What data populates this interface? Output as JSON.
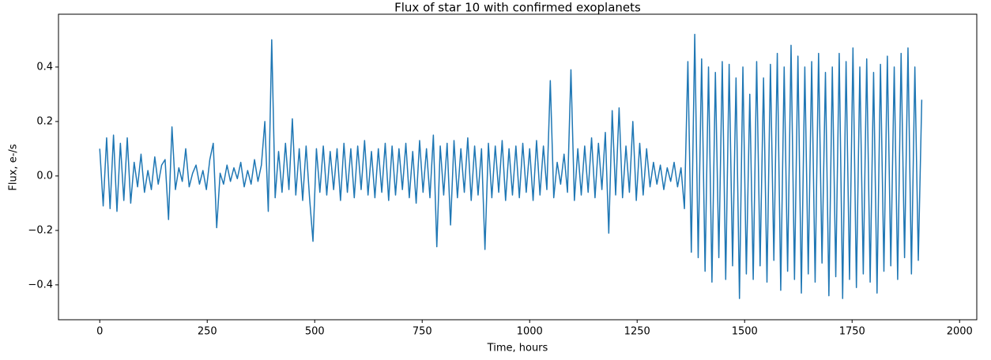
{
  "chart_data": {
    "type": "line",
    "title": "Flux of star 10 with confirmed exoplanets",
    "xlabel": "Time, hours",
    "ylabel": "Flux, e-/s",
    "xlim": [
      -96,
      2040
    ],
    "ylim": [
      -0.528,
      0.594
    ],
    "xticks": [
      0,
      250,
      500,
      750,
      1000,
      1250,
      1500,
      1750,
      2000
    ],
    "yticks": [
      {
        "value": -0.4,
        "label": "−0.4"
      },
      {
        "value": -0.2,
        "label": "−0.2"
      },
      {
        "value": 0,
        "label": "0.0"
      },
      0.2,
      0.4
    ],
    "series": [
      {
        "color": "#1f77b4",
        "x": [
          0,
          8,
          16,
          24,
          32,
          40,
          48,
          56,
          64,
          72,
          80,
          88,
          96,
          104,
          112,
          120,
          128,
          136,
          144,
          152,
          160,
          168,
          176,
          184,
          192,
          200,
          208,
          216,
          224,
          232,
          240,
          248,
          256,
          264,
          272,
          280,
          288,
          296,
          304,
          312,
          320,
          328,
          336,
          344,
          352,
          360,
          368,
          376,
          384,
          392,
          400,
          408,
          416,
          424,
          432,
          440,
          448,
          456,
          464,
          472,
          480,
          488,
          496,
          504,
          512,
          520,
          528,
          536,
          544,
          552,
          560,
          568,
          576,
          584,
          592,
          600,
          608,
          616,
          624,
          632,
          640,
          648,
          656,
          664,
          672,
          680,
          688,
          696,
          704,
          712,
          720,
          728,
          736,
          744,
          752,
          760,
          768,
          776,
          784,
          792,
          800,
          808,
          816,
          824,
          832,
          840,
          848,
          856,
          864,
          872,
          880,
          888,
          896,
          904,
          912,
          920,
          928,
          936,
          944,
          952,
          960,
          968,
          976,
          984,
          992,
          1000,
          1008,
          1016,
          1024,
          1032,
          1040,
          1048,
          1056,
          1064,
          1072,
          1080,
          1088,
          1096,
          1104,
          1112,
          1120,
          1128,
          1136,
          1144,
          1152,
          1160,
          1168,
          1176,
          1184,
          1192,
          1200,
          1208,
          1216,
          1224,
          1232,
          1240,
          1248,
          1256,
          1264,
          1272,
          1280,
          1288,
          1296,
          1304,
          1312,
          1320,
          1328,
          1336,
          1344,
          1352,
          1360,
          1368,
          1376,
          1384,
          1392,
          1400,
          1408,
          1416,
          1424,
          1432,
          1440,
          1448,
          1456,
          1464,
          1472,
          1480,
          1488,
          1496,
          1504,
          1512,
          1520,
          1528,
          1536,
          1544,
          1552,
          1560,
          1568,
          1576,
          1584,
          1592,
          1600,
          1608,
          1616,
          1624,
          1632,
          1640,
          1648,
          1656,
          1664,
          1672,
          1680,
          1688,
          1696,
          1704,
          1712,
          1720,
          1728,
          1736,
          1744,
          1752,
          1760,
          1768,
          1776,
          1784,
          1792,
          1800,
          1808,
          1816,
          1824,
          1832,
          1840,
          1848,
          1856,
          1864,
          1872,
          1880,
          1888,
          1896,
          1904,
          1912
        ],
        "values": [
          0.1,
          -0.11,
          0.14,
          -0.12,
          0.15,
          -0.13,
          0.12,
          -0.09,
          0.14,
          -0.1,
          0.05,
          -0.04,
          0.08,
          -0.06,
          0.02,
          -0.05,
          0.07,
          -0.03,
          0.04,
          0.06,
          -0.16,
          0.18,
          -0.05,
          0.03,
          -0.02,
          0.1,
          -0.04,
          0.01,
          0.04,
          -0.03,
          0.02,
          -0.05,
          0.06,
          0.12,
          -0.19,
          0.01,
          -0.03,
          0.04,
          -0.02,
          0.03,
          -0.01,
          0.05,
          -0.04,
          0.02,
          -0.03,
          0.06,
          -0.02,
          0.04,
          0.2,
          -0.13,
          0.5,
          -0.08,
          0.09,
          -0.06,
          0.12,
          -0.05,
          0.21,
          -0.07,
          0.1,
          -0.09,
          0.11,
          -0.08,
          -0.24,
          0.1,
          -0.06,
          0.11,
          -0.07,
          0.09,
          -0.05,
          0.1,
          -0.09,
          0.12,
          -0.06,
          0.1,
          -0.08,
          0.11,
          -0.05,
          0.13,
          -0.07,
          0.09,
          -0.08,
          0.1,
          -0.06,
          0.12,
          -0.09,
          0.11,
          -0.07,
          0.1,
          -0.05,
          0.12,
          -0.08,
          0.09,
          -0.1,
          0.13,
          -0.06,
          0.1,
          -0.08,
          0.15,
          -0.26,
          0.11,
          -0.07,
          0.12,
          -0.18,
          0.13,
          -0.08,
          0.1,
          -0.06,
          0.14,
          -0.09,
          0.11,
          -0.07,
          0.1,
          -0.27,
          0.12,
          -0.08,
          0.11,
          -0.06,
          0.13,
          -0.09,
          0.1,
          -0.07,
          0.11,
          -0.08,
          0.12,
          -0.06,
          0.1,
          -0.09,
          0.13,
          -0.07,
          0.11,
          -0.05,
          0.35,
          -0.08,
          0.05,
          -0.03,
          0.08,
          -0.06,
          0.39,
          -0.09,
          0.1,
          -0.07,
          0.11,
          -0.06,
          0.14,
          -0.08,
          0.12,
          -0.05,
          0.16,
          -0.21,
          0.24,
          -0.07,
          0.25,
          -0.08,
          0.11,
          -0.06,
          0.2,
          -0.09,
          0.12,
          -0.07,
          0.1,
          -0.04,
          0.05,
          -0.03,
          0.04,
          -0.05,
          0.03,
          -0.02,
          0.05,
          -0.04,
          0.03,
          -0.12,
          0.42,
          -0.28,
          0.52,
          -0.3,
          0.43,
          -0.35,
          0.4,
          -0.39,
          0.38,
          -0.3,
          0.42,
          -0.38,
          0.41,
          -0.33,
          0.36,
          -0.45,
          0.4,
          -0.36,
          0.3,
          -0.38,
          0.42,
          -0.33,
          0.36,
          -0.39,
          0.41,
          -0.31,
          0.45,
          -0.42,
          0.4,
          -0.35,
          0.48,
          -0.38,
          0.44,
          -0.43,
          0.4,
          -0.36,
          0.42,
          -0.39,
          0.45,
          -0.32,
          0.38,
          -0.44,
          0.4,
          -0.37,
          0.45,
          -0.45,
          0.42,
          -0.38,
          0.47,
          -0.41,
          0.4,
          -0.36,
          0.43,
          -0.39,
          0.38,
          -0.43,
          0.41,
          -0.35,
          0.44,
          -0.33,
          0.4,
          -0.38,
          0.45,
          -0.3,
          0.47,
          -0.36,
          0.4,
          -0.31,
          0.28
        ]
      }
    ]
  }
}
